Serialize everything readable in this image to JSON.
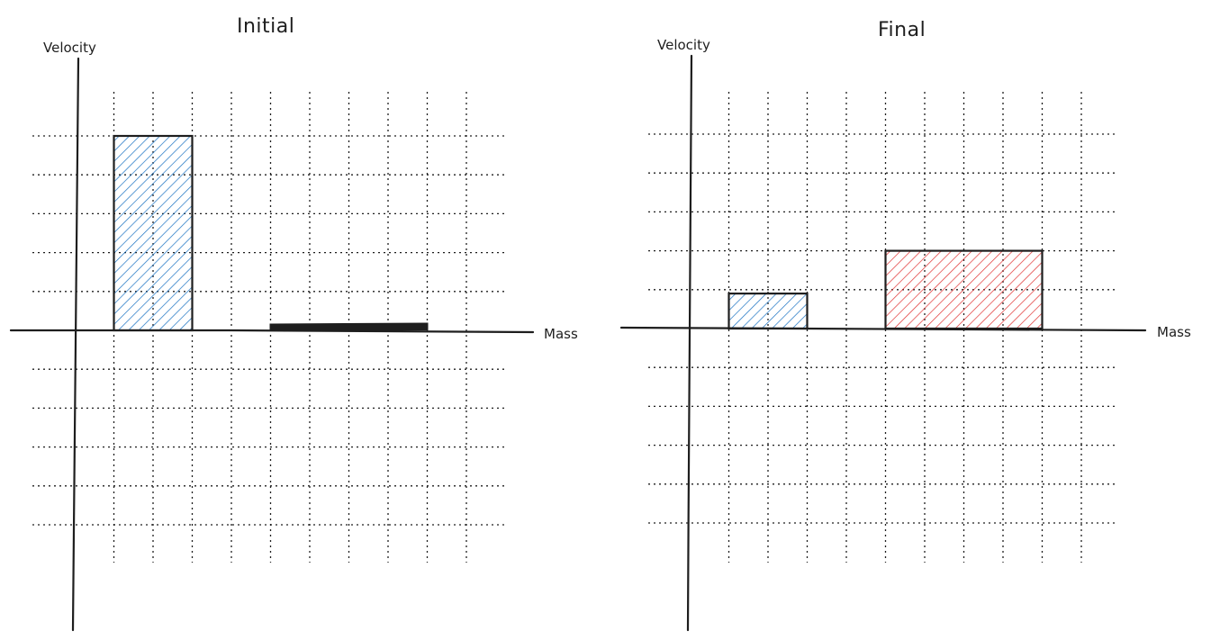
{
  "diagram": {
    "panels": [
      {
        "id": "initial",
        "title": "Initial",
        "ylabel": "Velocity",
        "xlabel": "Mass",
        "bars": [
          {
            "color": "#1971c2",
            "mass_start": 1,
            "mass_end": 3,
            "velocity": 5
          },
          {
            "color": "#e03131",
            "mass_start": 5,
            "mass_end": 9,
            "velocity": 0.15
          }
        ]
      },
      {
        "id": "final",
        "title": "Final",
        "ylabel": "Velocity",
        "xlabel": "Mass",
        "bars": [
          {
            "color": "#1971c2",
            "mass_start": 1,
            "mass_end": 3,
            "velocity": 0.9
          },
          {
            "color": "#e03131",
            "mass_start": 5,
            "mass_end": 9,
            "velocity": 2
          }
        ]
      }
    ]
  }
}
